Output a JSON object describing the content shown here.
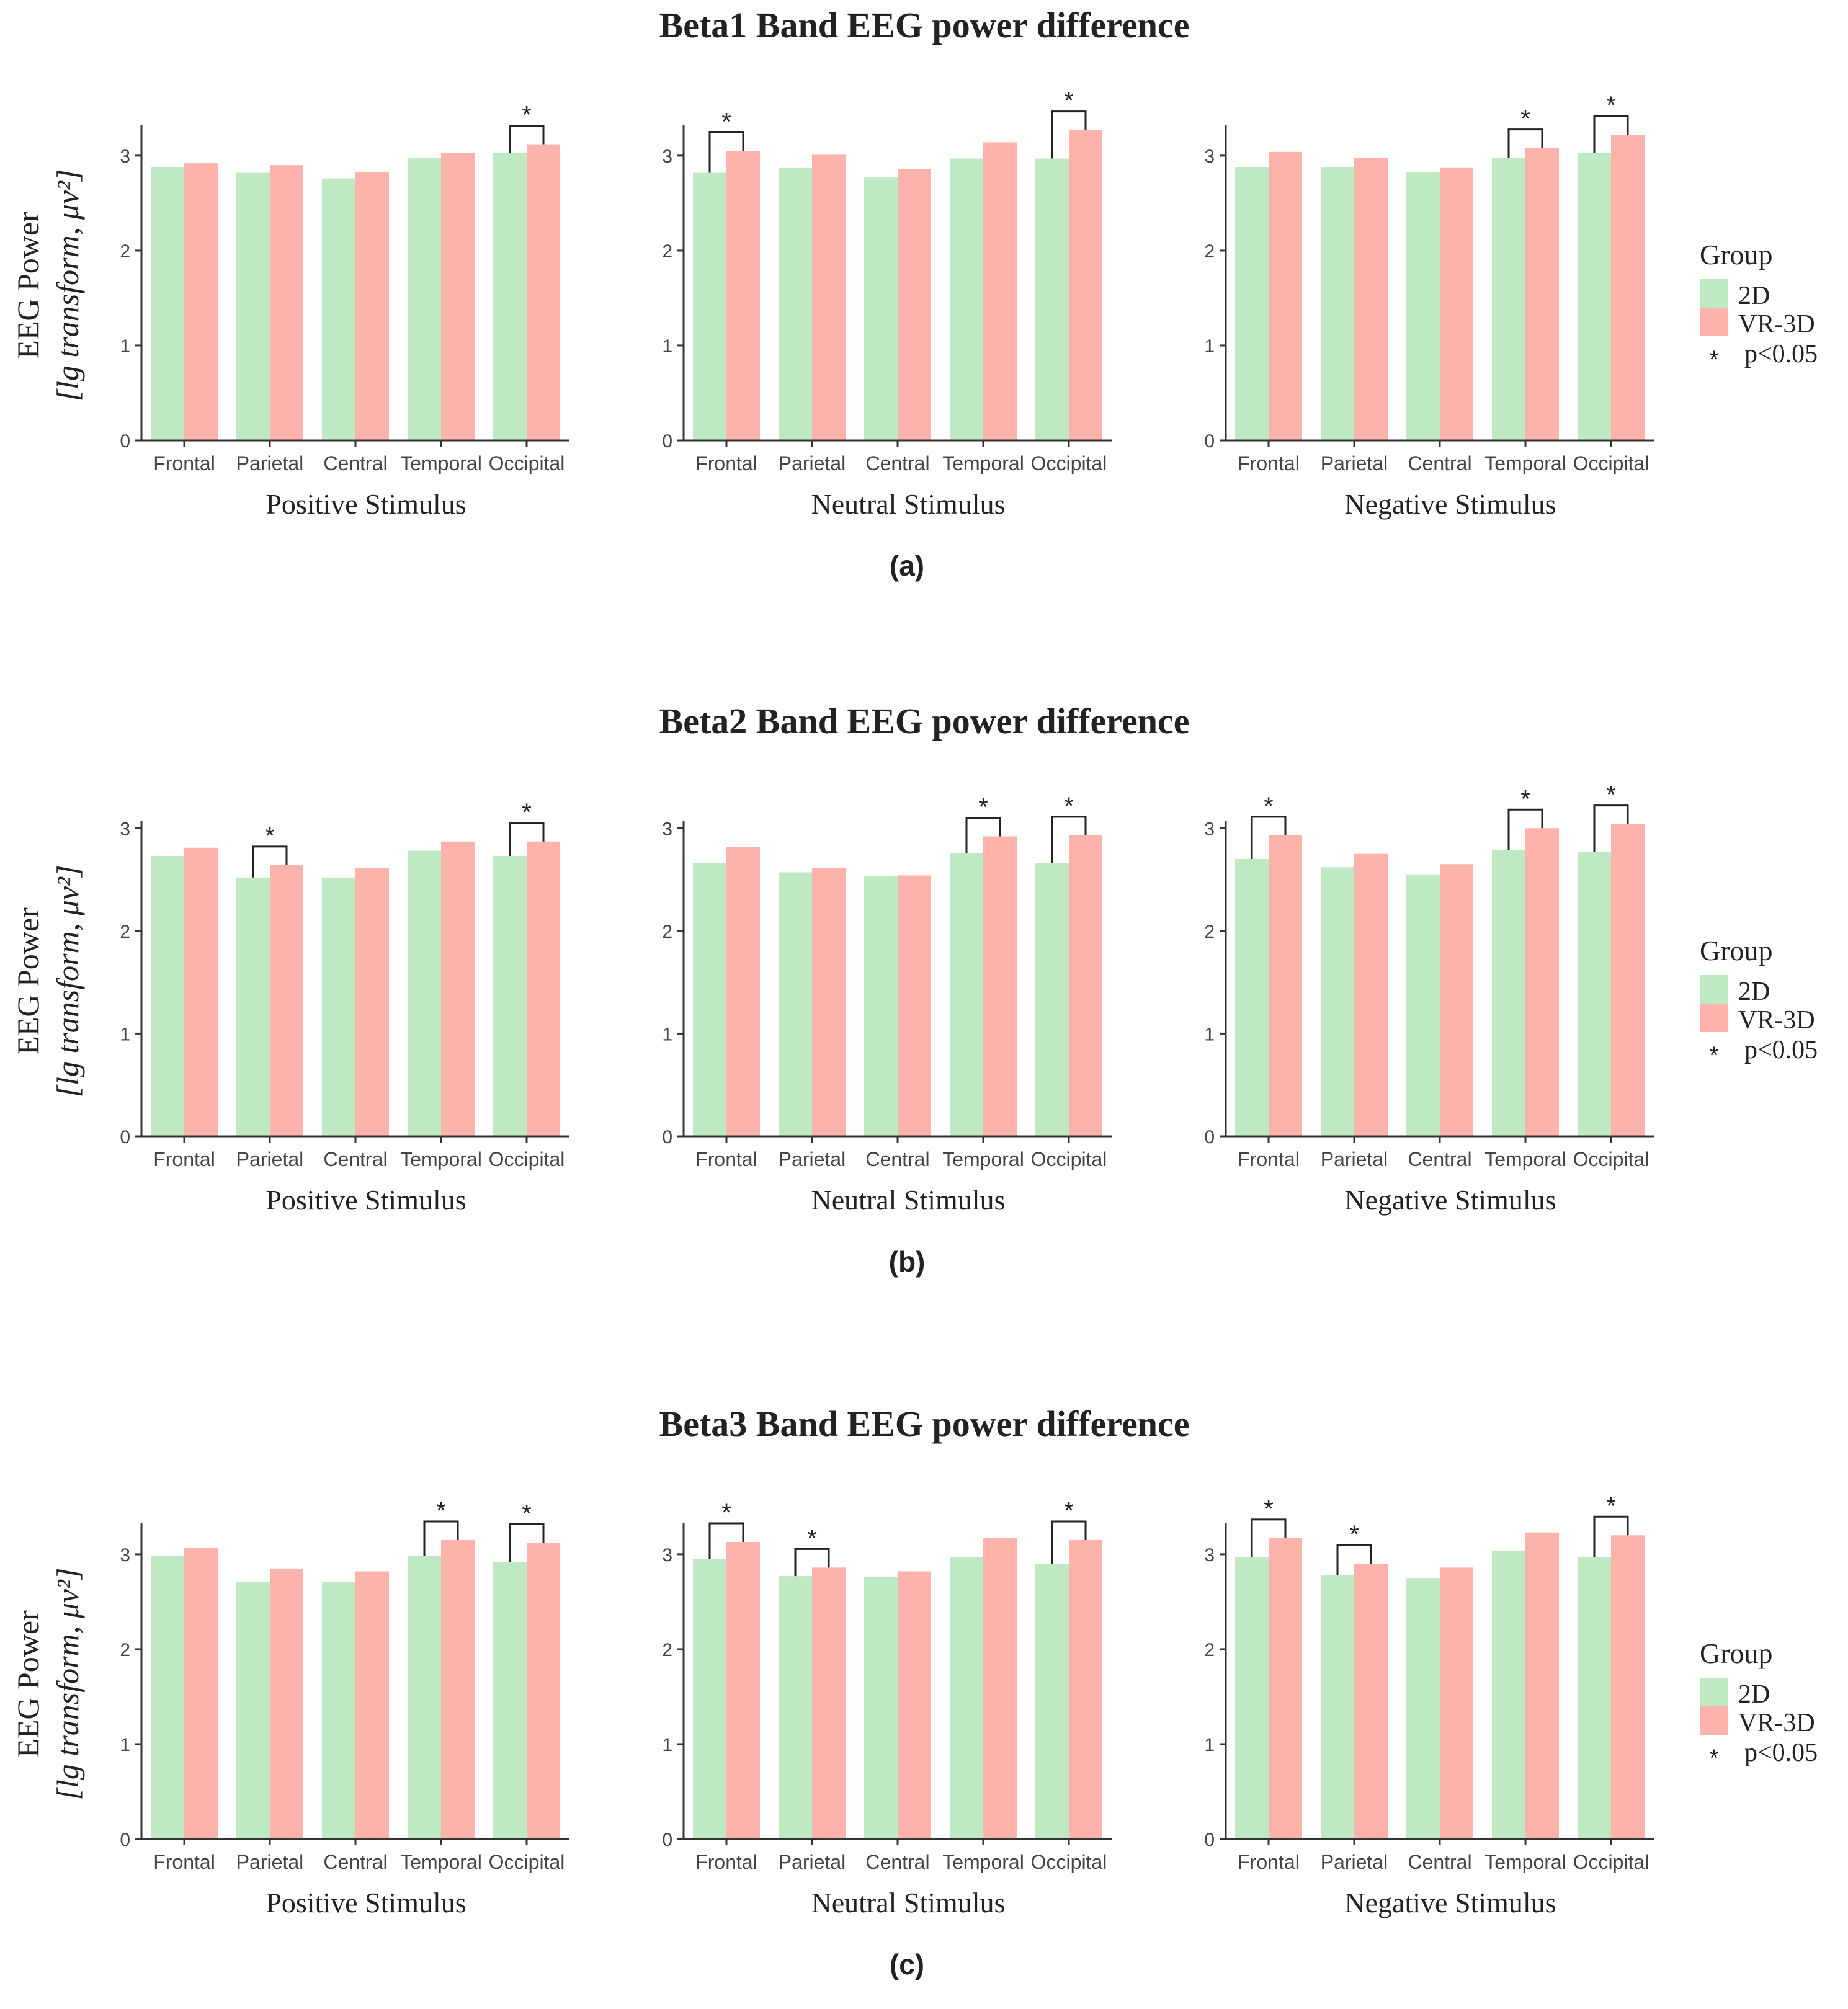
{
  "colors": {
    "group_2d": "#bfe9c3",
    "group_vr3d": "#fbb3ac",
    "axis": "#333333",
    "text": "#222222",
    "bracket": "#222222"
  },
  "y_axis_label_line1": "EEG Power",
  "y_axis_label_line2": "[lg transform, μv²]",
  "legend": {
    "title": "Group",
    "items": [
      "2D",
      "VR-3D"
    ],
    "sig_marker": "*",
    "sig_label": "p<0.05"
  },
  "chart_data": [
    {
      "type": "bar",
      "title": "Beta1 Band EEG power difference",
      "panel_label": "(a)",
      "ylim": [
        0,
        3.3
      ],
      "yticks": [
        "0",
        "1",
        "2",
        "3"
      ],
      "subplots": [
        {
          "xlabel": "Positive Stimulus",
          "categories": [
            "Frontal",
            "Parietal",
            "Central",
            "Temporal",
            "Occipital"
          ],
          "series": [
            {
              "name": "2D",
              "values": [
                2.88,
                2.82,
                2.76,
                2.98,
                3.03
              ]
            },
            {
              "name": "VR-3D",
              "values": [
                2.92,
                2.9,
                2.83,
                3.03,
                3.12
              ]
            }
          ],
          "significant": [
            false,
            false,
            false,
            false,
            true
          ]
        },
        {
          "xlabel": "Neutral Stimulus",
          "categories": [
            "Frontal",
            "Parietal",
            "Central",
            "Temporal",
            "Occipital"
          ],
          "series": [
            {
              "name": "2D",
              "values": [
                2.82,
                2.87,
                2.77,
                2.97,
                2.97
              ]
            },
            {
              "name": "VR-3D",
              "values": [
                3.05,
                3.01,
                2.86,
                3.14,
                3.27
              ]
            }
          ],
          "significant": [
            true,
            false,
            false,
            false,
            true
          ]
        },
        {
          "xlabel": "Negative Stimulus",
          "categories": [
            "Frontal",
            "Parietal",
            "Central",
            "Temporal",
            "Occipital"
          ],
          "series": [
            {
              "name": "2D",
              "values": [
                2.88,
                2.88,
                2.83,
                2.98,
                3.03
              ]
            },
            {
              "name": "VR-3D",
              "values": [
                3.04,
                2.98,
                2.87,
                3.08,
                3.22
              ]
            }
          ],
          "significant": [
            false,
            false,
            false,
            true,
            true
          ]
        }
      ]
    },
    {
      "type": "bar",
      "title": "Beta2 Band EEG power difference",
      "panel_label": "(b)",
      "ylim": [
        0,
        3.05
      ],
      "yticks": [
        "0",
        "1",
        "2",
        "3"
      ],
      "subplots": [
        {
          "xlabel": "Positive Stimulus",
          "categories": [
            "Frontal",
            "Parietal",
            "Central",
            "Temporal",
            "Occipital"
          ],
          "series": [
            {
              "name": "2D",
              "values": [
                2.73,
                2.52,
                2.52,
                2.78,
                2.73
              ]
            },
            {
              "name": "VR-3D",
              "values": [
                2.81,
                2.64,
                2.61,
                2.87,
                2.87
              ]
            }
          ],
          "significant": [
            false,
            true,
            false,
            false,
            true
          ]
        },
        {
          "xlabel": "Neutral Stimulus",
          "categories": [
            "Frontal",
            "Parietal",
            "Central",
            "Temporal",
            "Occipital"
          ],
          "series": [
            {
              "name": "2D",
              "values": [
                2.66,
                2.57,
                2.53,
                2.76,
                2.66
              ]
            },
            {
              "name": "VR-3D",
              "values": [
                2.82,
                2.61,
                2.54,
                2.92,
                2.93
              ]
            }
          ],
          "significant": [
            false,
            false,
            false,
            true,
            true
          ]
        },
        {
          "xlabel": "Negative Stimulus",
          "categories": [
            "Frontal",
            "Parietal",
            "Central",
            "Temporal",
            "Occipital"
          ],
          "series": [
            {
              "name": "2D",
              "values": [
                2.7,
                2.62,
                2.55,
                2.79,
                2.77
              ]
            },
            {
              "name": "VR-3D",
              "values": [
                2.93,
                2.75,
                2.65,
                3.0,
                3.04
              ]
            }
          ],
          "significant": [
            true,
            false,
            false,
            true,
            true
          ]
        }
      ]
    },
    {
      "type": "bar",
      "title": "Beta3 Band EEG power difference",
      "panel_label": "(c)",
      "ylim": [
        0,
        3.3
      ],
      "yticks": [
        "0",
        "1",
        "2",
        "3"
      ],
      "subplots": [
        {
          "xlabel": "Positive Stimulus",
          "categories": [
            "Frontal",
            "Parietal",
            "Central",
            "Temporal",
            "Occipital"
          ],
          "series": [
            {
              "name": "2D",
              "values": [
                2.98,
                2.71,
                2.71,
                2.98,
                2.92
              ]
            },
            {
              "name": "VR-3D",
              "values": [
                3.07,
                2.85,
                2.82,
                3.15,
                3.12
              ]
            }
          ],
          "significant": [
            false,
            false,
            false,
            true,
            true
          ]
        },
        {
          "xlabel": "Neutral Stimulus",
          "categories": [
            "Frontal",
            "Parietal",
            "Central",
            "Temporal",
            "Occipital"
          ],
          "series": [
            {
              "name": "2D",
              "values": [
                2.95,
                2.77,
                2.76,
                2.97,
                2.9
              ]
            },
            {
              "name": "VR-3D",
              "values": [
                3.13,
                2.86,
                2.82,
                3.17,
                3.15
              ]
            }
          ],
          "significant": [
            true,
            true,
            false,
            false,
            true
          ]
        },
        {
          "xlabel": "Negative Stimulus",
          "categories": [
            "Frontal",
            "Parietal",
            "Central",
            "Temporal",
            "Occipital"
          ],
          "series": [
            {
              "name": "2D",
              "values": [
                2.97,
                2.78,
                2.75,
                3.04,
                2.97
              ]
            },
            {
              "name": "VR-3D",
              "values": [
                3.17,
                2.9,
                2.86,
                3.23,
                3.2
              ]
            }
          ],
          "significant": [
            true,
            true,
            false,
            false,
            true
          ]
        }
      ]
    }
  ]
}
